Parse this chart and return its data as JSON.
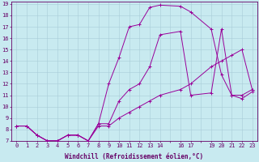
{
  "xlabel": "Windchill (Refroidissement éolien,°C)",
  "background_color": "#c8eaf0",
  "line_color": "#990099",
  "xlim": [
    -0.5,
    23.5
  ],
  "ylim": [
    7,
    19.2
  ],
  "line1_x": [
    0,
    1,
    2,
    3,
    4,
    5,
    6,
    7,
    8,
    9,
    10,
    11,
    12,
    13,
    14,
    16,
    17,
    19,
    20,
    21,
    22,
    23
  ],
  "line1_y": [
    8.3,
    8.3,
    7.5,
    7.0,
    7.0,
    7.5,
    7.5,
    7.0,
    8.5,
    12.0,
    14.3,
    17.0,
    17.2,
    18.7,
    18.9,
    18.8,
    18.3,
    16.8,
    12.8,
    11.0,
    10.7,
    11.3
  ],
  "line2_x": [
    0,
    1,
    2,
    3,
    4,
    5,
    6,
    7,
    8,
    9,
    10,
    11,
    12,
    13,
    14,
    16,
    17,
    19,
    20,
    21,
    22,
    23
  ],
  "line2_y": [
    8.3,
    8.3,
    7.5,
    7.0,
    7.0,
    7.5,
    7.5,
    7.0,
    8.5,
    8.5,
    10.5,
    11.5,
    12.0,
    13.5,
    16.3,
    16.6,
    11.0,
    11.2,
    16.8,
    11.0,
    11.0,
    11.5
  ],
  "line3_x": [
    0,
    1,
    2,
    3,
    4,
    5,
    6,
    7,
    8,
    9,
    10,
    11,
    12,
    13,
    14,
    16,
    17,
    19,
    20,
    21,
    22,
    23
  ],
  "line3_y": [
    8.3,
    8.3,
    7.5,
    7.0,
    7.0,
    7.5,
    7.5,
    7.0,
    8.3,
    8.3,
    9.0,
    9.5,
    10.0,
    10.5,
    11.0,
    11.5,
    12.0,
    13.5,
    14.0,
    14.5,
    15.0,
    11.5
  ],
  "xtick_pos": [
    0,
    1,
    2,
    3,
    4,
    5,
    6,
    7,
    8,
    9,
    10,
    11,
    12,
    13,
    14,
    15,
    16,
    17,
    18,
    19,
    20,
    21,
    22,
    23
  ],
  "xtick_labels": [
    "0",
    "1",
    "2",
    "3",
    "4",
    "5",
    "6",
    "7",
    "8",
    "9",
    "10",
    "11",
    "12",
    "13",
    "14",
    "",
    "16",
    "17",
    "",
    "19",
    "20",
    "21",
    "22",
    "23"
  ],
  "ytick_pos": [
    7,
    8,
    9,
    10,
    11,
    12,
    13,
    14,
    15,
    16,
    17,
    18,
    19
  ],
  "ytick_labels": [
    "7",
    "8",
    "9",
    "10",
    "11",
    "12",
    "13",
    "14",
    "15",
    "16",
    "17",
    "18",
    "19"
  ],
  "tick_fontsize": 5,
  "xlabel_fontsize": 5.5,
  "tick_color": "#660066",
  "spine_color": "#660066",
  "grid_color": "#a8ccd8"
}
